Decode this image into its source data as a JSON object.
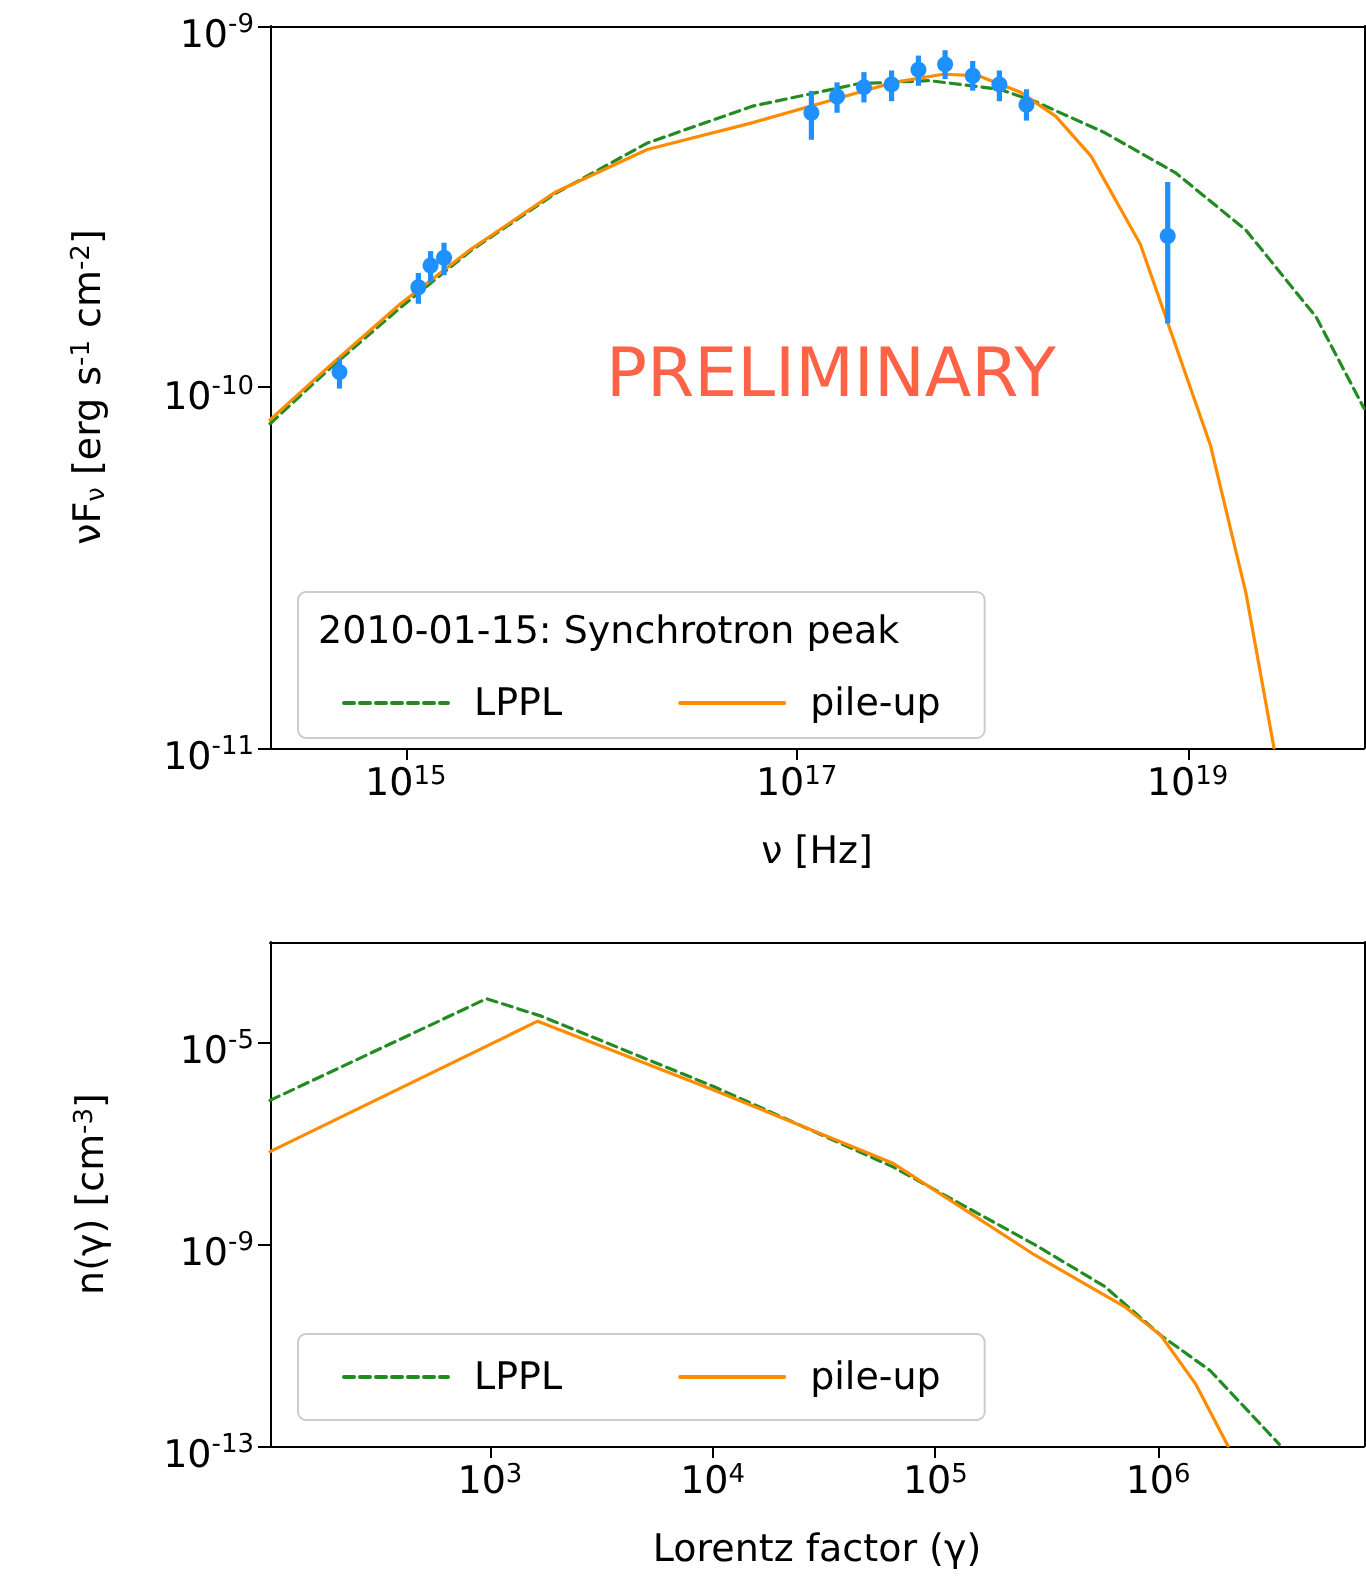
{
  "chart_data": [
    {
      "type": "line",
      "xlabel": "ν [Hz]",
      "ylabel": "νF$_{ν}$ [erg s$^{-1}$ cm$^{-2}$]",
      "legend_title": "2010-01-15: Synchrotron peak",
      "annotations": [
        "PRELIMINARY"
      ],
      "log": "xy",
      "legend": "bottom left",
      "xlim": [
        202000000000000.0,
        8e+19
      ],
      "ylim": [
        1e-11,
        1e-09
      ],
      "xticks": [
        {
          "value": 1000000000000000.0,
          "label": "10$^{15}$"
        },
        {
          "value": 1e+17,
          "label": "10$^{17}$"
        },
        {
          "value": 1e+19,
          "label": "10$^{19}$"
        }
      ],
      "yticks": [
        {
          "value": 1e-11,
          "label": "10$^{-11}$"
        },
        {
          "value": 1e-10,
          "label": "10$^{-10}$"
        },
        {
          "value": 1e-09,
          "label": "10$^{-9}$"
        }
      ],
      "series": [
        {
          "name": "LPPL",
          "color": "#228b22",
          "line_style": "dashed",
          "marker": "none",
          "x": [
            202000000000000.0,
            412000000000000.0,
            940000000000000.0,
            2160000000000000.0,
            5850000000000000.0,
            1.72e+16,
            5.97e+16,
            2.07e+17,
            4.75e+17,
            1.09e+18,
            1.65e+18,
            3.78e+18,
            8.69e+18,
            1.99e+19,
            4.56e+19,
            8e+19
          ],
          "values": [
            7.91e-11,
            1.13e-10,
            1.66e-10,
            2.39e-10,
            3.44e-10,
            4.74e-10,
            6e-10,
            6.92e-10,
            7.06e-10,
            6.68e-10,
            6.19e-10,
            5.06e-10,
            3.92e-10,
            2.72e-10,
            1.56e-10,
            8.73e-11
          ]
        },
        {
          "name": "pile-up",
          "color": "#ff8c00",
          "line_style": "solid",
          "marker": "none",
          "x": [
            202000000000000.0,
            412000000000000.0,
            940000000000000.0,
            2160000000000000.0,
            5850000000000000.0,
            1.72e+16,
            5.97e+16,
            1.37e+17,
            3.14e+17,
            5.62e+17,
            8.51e+17,
            1.4e+18,
            2.12e+18,
            3.21e+18,
            5.73e+18,
            7.98e+18,
            1.31e+19,
            1.99e+19,
            2.77e+19
          ],
          "values": [
            8.11e-11,
            1.15e-10,
            1.7e-10,
            2.41e-10,
            3.47e-10,
            4.55e-10,
            5.4e-10,
            6.14e-10,
            6.98e-10,
            7.35e-10,
            7.28e-10,
            6.55e-10,
            5.62e-10,
            4.36e-10,
            2.49e-10,
            1.49e-10,
            6.9e-11,
            2.69e-11,
            1e-11
          ]
        },
        {
          "type": "scatter",
          "color": "#1e90ff",
          "marker": "circle",
          "x": [
            458000000000000.0,
            1160000000000000.0,
            1340000000000000.0,
            1570000000000000.0,
            1.19e+17,
            1.61e+17,
            2.21e+17,
            3.06e+17,
            4.2e+17,
            5.75e+17,
            7.96e+17,
            1.09e+18,
            1.5e+18,
            7.92e+18
          ],
          "values": [
            1.1e-10,
            1.89e-10,
            2.17e-10,
            2.28e-10,
            5.75e-10,
            6.38e-10,
            6.77e-10,
            6.89e-10,
            7.57e-10,
            7.83e-10,
            7.28e-10,
            6.89e-10,
            6.05e-10,
            2.62e-10
          ],
          "errors": [
            [
              9.9e-11,
              1.2e-10
            ],
            [
              1.7e-10,
              2.07e-10
            ],
            [
              1.95e-10,
              2.38e-10
            ],
            [
              2.04e-10,
              2.51e-10
            ],
            [
              4.84e-10,
              6.61e-10
            ],
            [
              5.75e-10,
              6.98e-10
            ],
            [
              6.14e-10,
              7.45e-10
            ],
            [
              6.19e-10,
              7.53e-10
            ],
            [
              6.83e-10,
              8.28e-10
            ],
            [
              7.13e-10,
              8.57e-10
            ],
            [
              6.62e-10,
              8e-10
            ],
            [
              6.19e-10,
              7.53e-10
            ],
            [
              5.47e-10,
              6.68e-10
            ],
            [
              1.5e-10,
              3.7e-10
            ]
          ]
        }
      ]
    },
    {
      "type": "line",
      "xlabel": "Lorentz factor (γ)",
      "ylabel": "n(γ) [cm$^{-3}$]",
      "log": "xy",
      "legend": "bottom left",
      "xlim": [
        103.0,
        8400000.0
      ],
      "ylim": [
        1e-13,
        0.001
      ],
      "xticks": [
        {
          "value": 1000.0,
          "label": "10$^{3}$"
        },
        {
          "value": 10000.0,
          "label": "10$^{4}$"
        },
        {
          "value": 100000.0,
          "label": "10$^{5}$"
        },
        {
          "value": 1000000.0,
          "label": "10$^{6}$"
        }
      ],
      "yticks": [
        {
          "value": 1e-13,
          "label": "10$^{-13}$"
        },
        {
          "value": 1e-09,
          "label": "10$^{-9}$"
        },
        {
          "value": 1e-05,
          "label": "10$^{-5}$"
        }
      ],
      "series": [
        {
          "name": "LPPL",
          "color": "#228b22",
          "line_style": "dashed",
          "marker": "none",
          "x": [
            103.0,
            966.0,
            1700.0,
            10100.0,
            64900.0,
            278000.0,
            575000.0,
            1030000.0,
            1710000.0,
            3500000.0
          ],
          "values": [
            7.2e-07,
            7.5e-05,
            3.38e-05,
            1.36e-06,
            3.41e-08,
            1e-09,
            1.47e-10,
            1.56e-11,
            3.15e-12,
            1.08e-13
          ]
        },
        {
          "name": "pile-up",
          "color": "#ff8c00",
          "line_style": "solid",
          "marker": "none",
          "x": [
            103.0,
            1640.0,
            10100.0,
            64900.0,
            278000.0,
            716000.0,
            1030000.0,
            1480000.0,
            2060000.0
          ],
          "values": [
            6.93e-08,
            2.69e-05,
            1.16e-06,
            4.02e-08,
            6.24e-10,
            5.61e-11,
            1.56e-11,
            1.65e-12,
            1e-13
          ]
        }
      ]
    }
  ]
}
